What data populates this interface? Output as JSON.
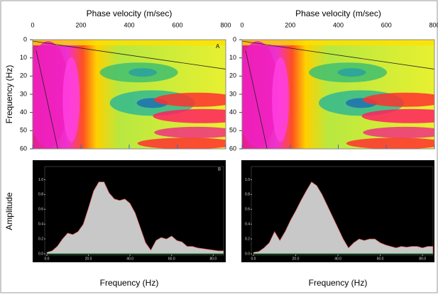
{
  "chart_data": [
    {
      "type": "heatmap",
      "title": "Phase velocity (m/sec)",
      "y_label": "Frequency (Hz)",
      "annotation": "A",
      "xlim": [
        0,
        800
      ],
      "xticks": [
        0,
        200,
        400,
        600,
        800
      ],
      "ylim": [
        0,
        60
      ],
      "yticks": [
        0,
        10,
        20,
        30,
        40,
        50,
        60
      ]
    },
    {
      "type": "heatmap",
      "title": "Phase velocity (m/sec)",
      "xlim": [
        0,
        800
      ],
      "xticks": [
        0,
        200,
        400,
        600,
        800
      ],
      "ylim": [
        0,
        60
      ],
      "yticks": [
        0,
        10,
        20,
        30,
        40,
        50,
        60
      ]
    },
    {
      "type": "area",
      "y_label": "Amplitude",
      "x_label": "Frequency (Hz)",
      "annotation": "B",
      "color": "#c8c8c8",
      "xlim": [
        0,
        85
      ],
      "ylim": [
        0,
        1.1
      ],
      "xticks": [
        {
          "value": 0,
          "label": "0.0"
        },
        {
          "value": 20,
          "label": "20.0"
        },
        {
          "value": 40,
          "label": "40.0"
        },
        {
          "value": 60,
          "label": "60.0"
        },
        {
          "value": 80,
          "label": "80.0"
        }
      ],
      "yticks": [
        {
          "value": 0,
          "label": "0.0"
        },
        {
          "value": 0.2,
          "label": "0.2"
        },
        {
          "value": 0.4,
          "label": "0.4"
        },
        {
          "value": 0.6,
          "label": "0.6"
        },
        {
          "value": 0.8,
          "label": "0.8"
        },
        {
          "value": 1,
          "label": "1.0"
        }
      ],
      "x": [
        0,
        2.5,
        5,
        7.5,
        10,
        12.5,
        15,
        17.5,
        20,
        22.5,
        25,
        27.5,
        30,
        32.5,
        35,
        37.5,
        40,
        42.5,
        45,
        47.5,
        50,
        52.5,
        55,
        57.5,
        60,
        62.5,
        65,
        67.5,
        70,
        72.5,
        75,
        77.5,
        80,
        82.5,
        85
      ],
      "values": [
        0.02,
        0.04,
        0.1,
        0.2,
        0.28,
        0.26,
        0.3,
        0.4,
        0.62,
        0.85,
        0.97,
        0.97,
        0.82,
        0.74,
        0.72,
        0.74,
        0.68,
        0.55,
        0.35,
        0.15,
        0.05,
        0.18,
        0.22,
        0.2,
        0.24,
        0.18,
        0.16,
        0.1,
        0.1,
        0.08,
        0.07,
        0.06,
        0.05,
        0.04,
        0.04
      ]
    },
    {
      "type": "area",
      "x_label": "Frequency (Hz)",
      "color": "#c8c8c8",
      "xlim": [
        0,
        85
      ],
      "ylim": [
        0,
        1.1
      ],
      "xticks": [
        {
          "value": 0,
          "label": "0.0"
        },
        {
          "value": 20,
          "label": "20.0"
        },
        {
          "value": 40,
          "label": "40.0"
        },
        {
          "value": 60,
          "label": "60.0"
        },
        {
          "value": 80,
          "label": "80.0"
        }
      ],
      "yticks": [
        {
          "value": 0,
          "label": "0.0"
        },
        {
          "value": 0.2,
          "label": "0.2"
        },
        {
          "value": 0.4,
          "label": "0.4"
        },
        {
          "value": 0.6,
          "label": "0.6"
        },
        {
          "value": 0.8,
          "label": "0.8"
        },
        {
          "value": 1,
          "label": "1.0"
        }
      ],
      "x": [
        0,
        2.5,
        5,
        7.5,
        10,
        12.5,
        15,
        17.5,
        20,
        22.5,
        25,
        27.5,
        30,
        32.5,
        35,
        37.5,
        40,
        42.5,
        45,
        47.5,
        50,
        52.5,
        55,
        57.5,
        60,
        62.5,
        65,
        67.5,
        70,
        72.5,
        75,
        77.5,
        80,
        82.5,
        85
      ],
      "values": [
        0.02,
        0.03,
        0.08,
        0.15,
        0.3,
        0.18,
        0.3,
        0.45,
        0.58,
        0.72,
        0.85,
        0.97,
        0.92,
        0.8,
        0.65,
        0.5,
        0.35,
        0.2,
        0.08,
        0.15,
        0.2,
        0.18,
        0.2,
        0.2,
        0.15,
        0.12,
        0.1,
        0.08,
        0.1,
        0.09,
        0.1,
        0.1,
        0.08,
        0.1,
        0.1
      ]
    }
  ]
}
